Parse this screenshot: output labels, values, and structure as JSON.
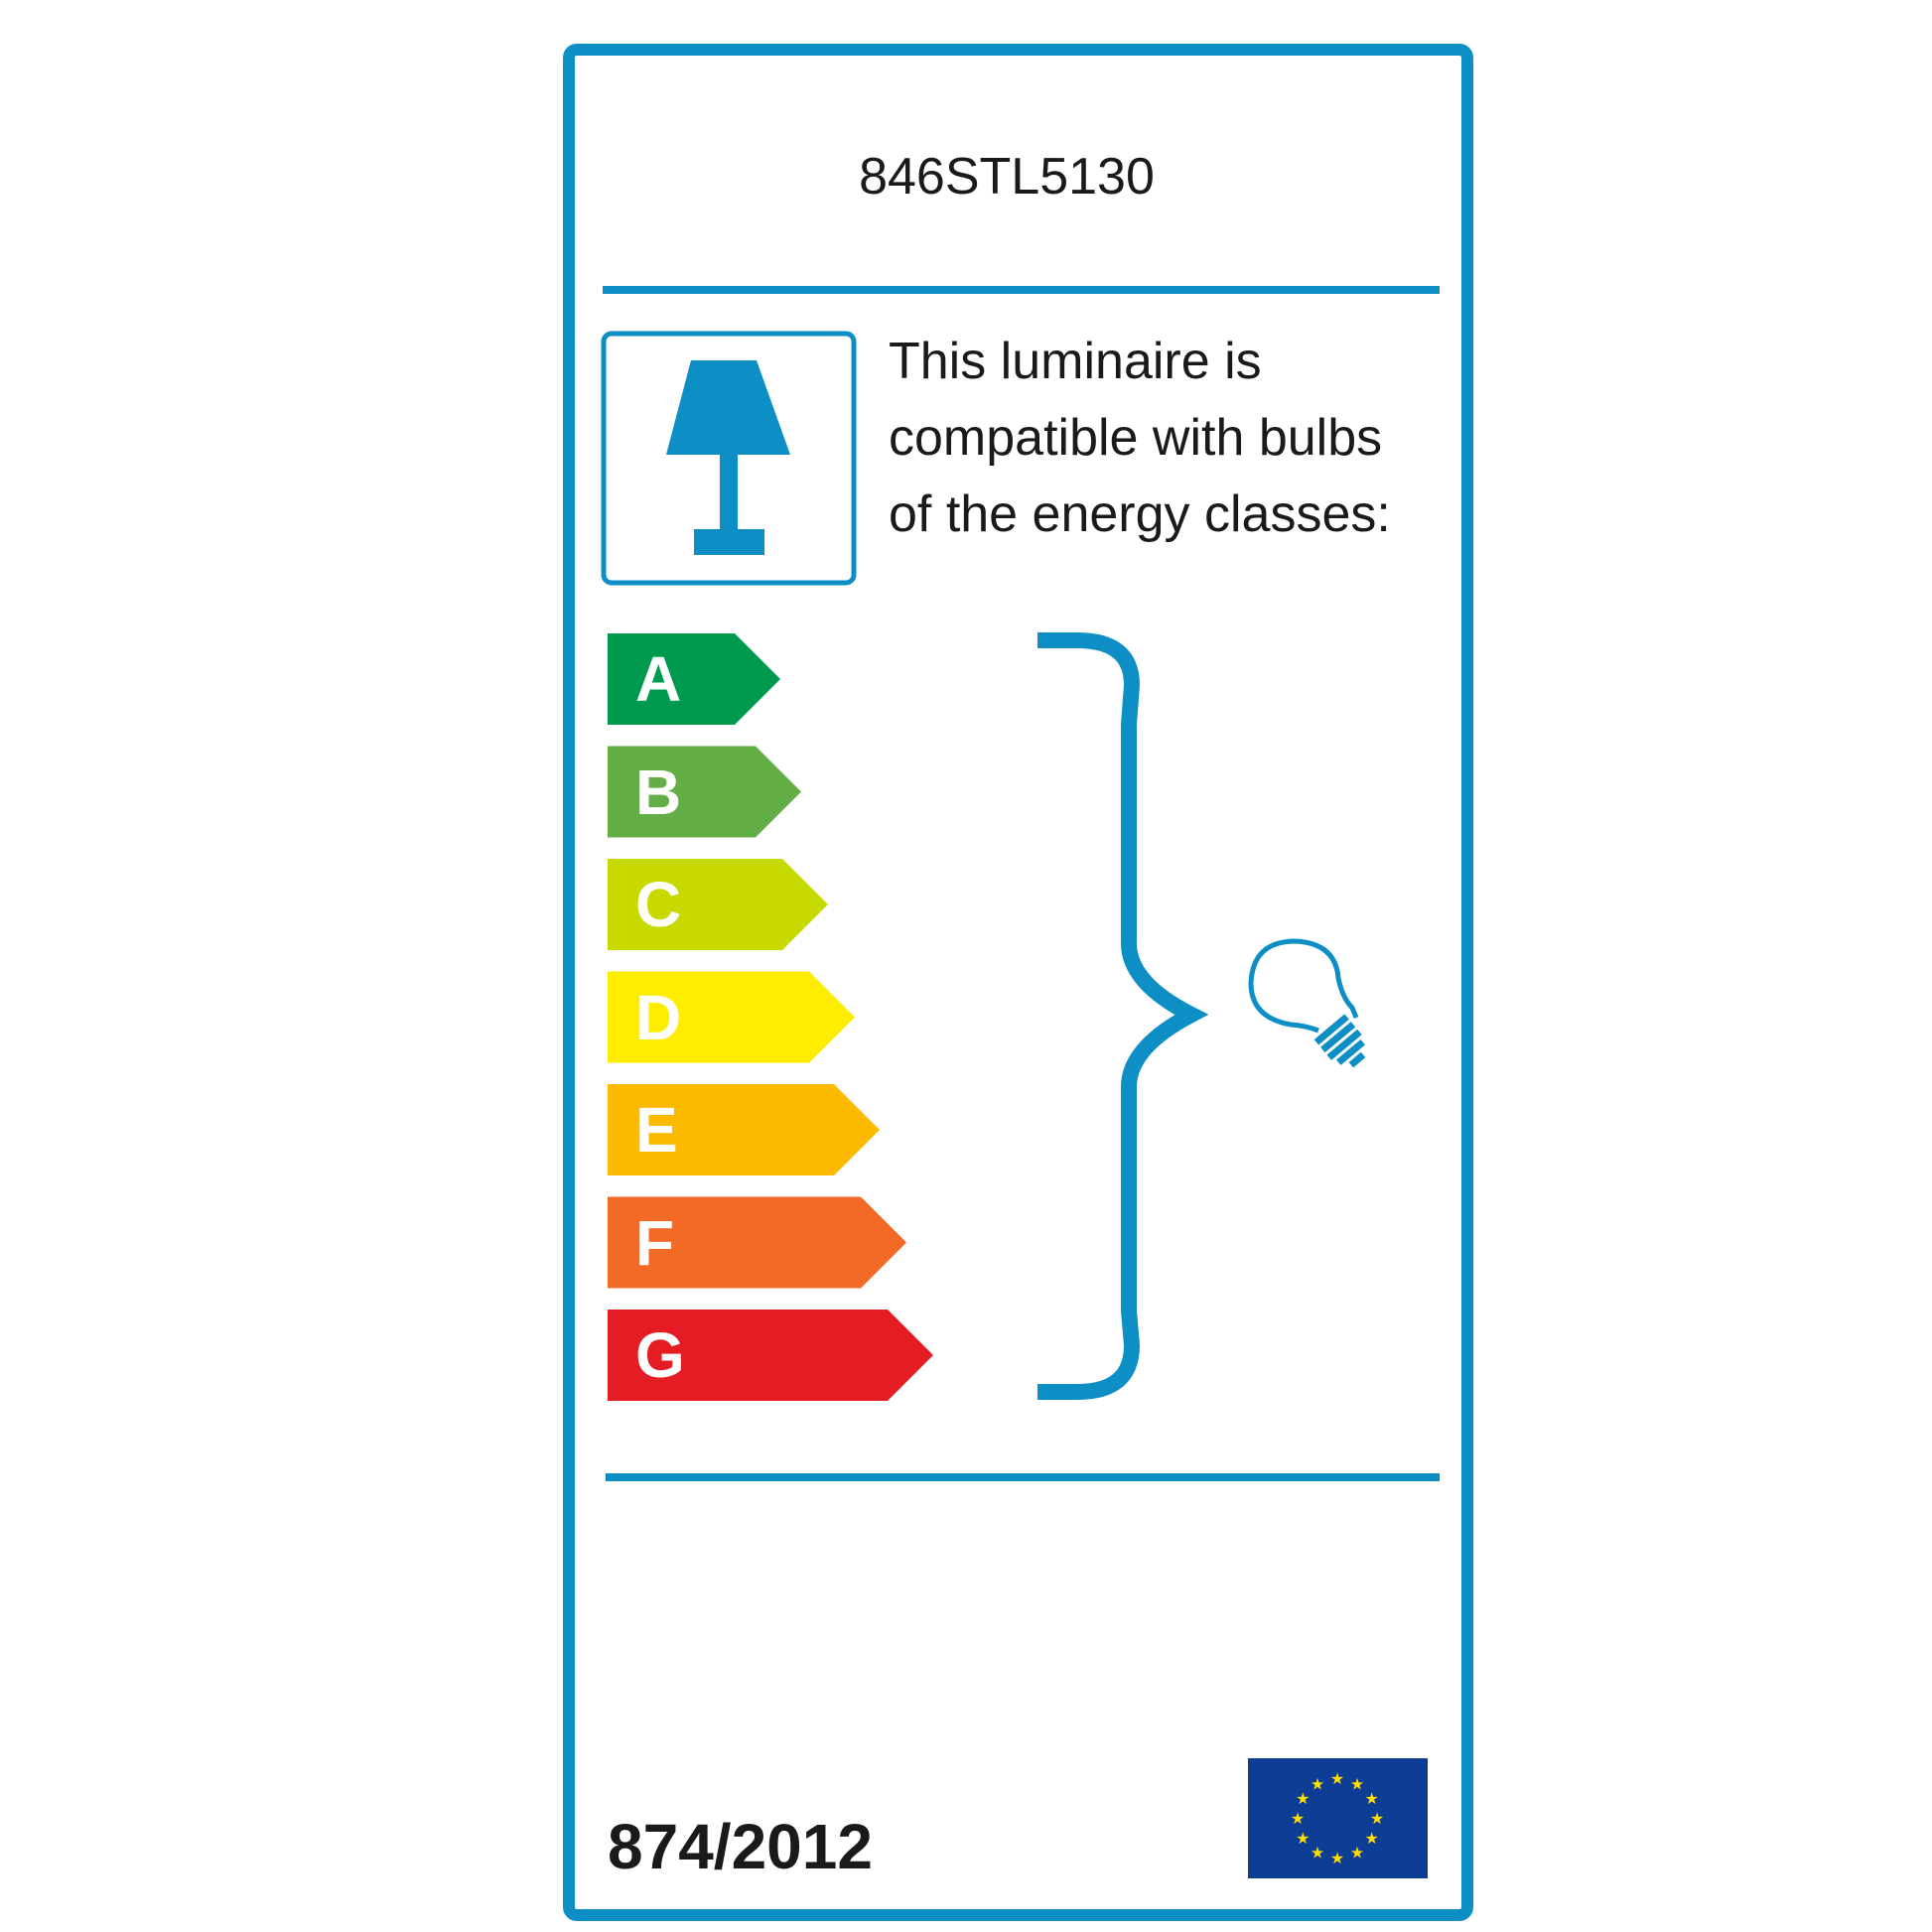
{
  "label": {
    "model": "846STL5130",
    "description_lines": [
      "This luminaire is",
      "compatible with bulbs",
      "of the energy classes:"
    ],
    "regulation": "874/2012",
    "accent_color": "#0d8fc6",
    "energy_classes": [
      {
        "letter": "A",
        "color": "#009a4e"
      },
      {
        "letter": "B",
        "color": "#63ae45"
      },
      {
        "letter": "C",
        "color": "#c8d900"
      },
      {
        "letter": "D",
        "color": "#ffed00"
      },
      {
        "letter": "E",
        "color": "#fbba00"
      },
      {
        "letter": "F",
        "color": "#f26a26"
      },
      {
        "letter": "G",
        "color": "#e41d25"
      }
    ],
    "icons": [
      "table-lamp-icon",
      "light-bulb-icon",
      "eu-flag-icon",
      "curly-brace"
    ]
  }
}
